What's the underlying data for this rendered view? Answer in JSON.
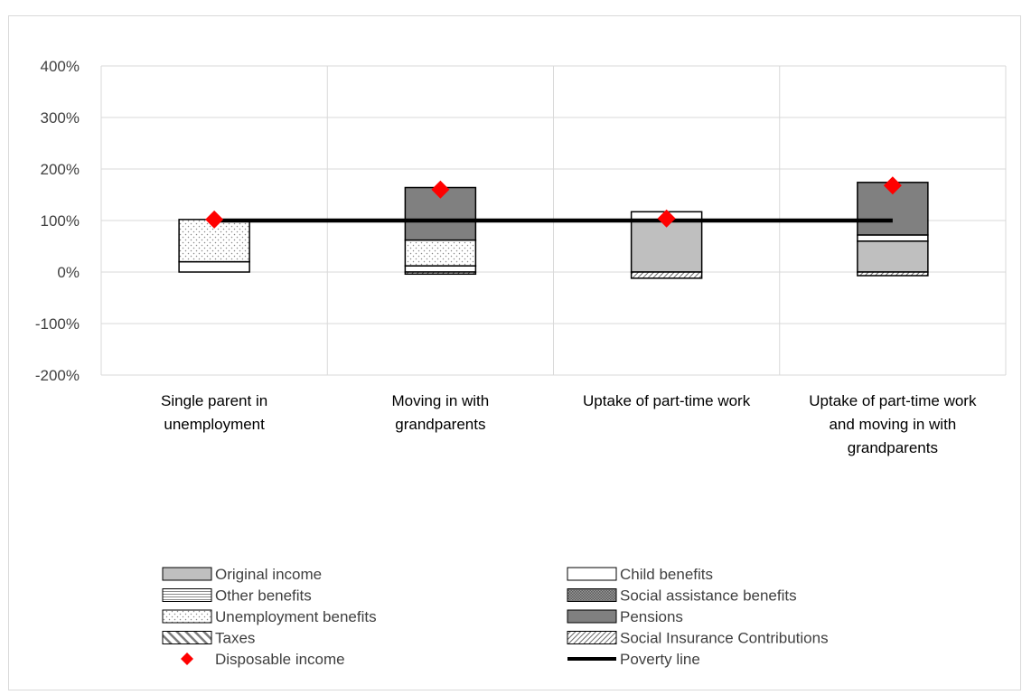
{
  "chart_data": {
    "type": "bar",
    "stacked": true,
    "title": "",
    "xlabel": "",
    "ylabel": "",
    "ylim": [
      -200,
      400
    ],
    "y_ticks": [
      400,
      300,
      200,
      100,
      0,
      -100,
      -200
    ],
    "y_tick_labels": [
      "400%",
      "300%",
      "200%",
      "100%",
      "0%",
      "-100%",
      "-200%"
    ],
    "grid": true,
    "legend_position": "bottom",
    "categories": [
      [
        "Single parent in",
        "unemployment"
      ],
      [
        "Moving in with",
        "grandparents"
      ],
      [
        "Uptake of part-time work"
      ],
      [
        "Uptake of part-time work",
        "and moving in with",
        "grandparents"
      ]
    ],
    "series": [
      {
        "name": "Original income",
        "pattern": "original",
        "values": [
          0,
          0,
          100,
          60
        ]
      },
      {
        "name": "Child benefits",
        "pattern": "child",
        "values": [
          20,
          12,
          17,
          12
        ]
      },
      {
        "name": "Other benefits",
        "pattern": "other",
        "values": [
          0,
          0,
          0,
          0
        ]
      },
      {
        "name": "Social assistance benefits",
        "pattern": "socassist",
        "values": [
          0,
          0,
          0,
          0
        ]
      },
      {
        "name": "Unemployment benefits",
        "pattern": "unemp",
        "values": [
          82,
          50,
          0,
          0
        ]
      },
      {
        "name": "Pensions",
        "pattern": "pensions",
        "values": [
          0,
          102,
          0,
          102
        ]
      },
      {
        "name": "Taxes",
        "pattern": "taxes",
        "values": [
          0,
          0,
          0,
          0
        ]
      },
      {
        "name": "Social Insurance Contributions",
        "pattern": "sic",
        "values": [
          0,
          -4,
          -12,
          -7
        ]
      }
    ],
    "disposable_income": {
      "name": "Disposable income",
      "values": [
        102,
        160,
        104,
        168
      ],
      "color": "#ff0000"
    },
    "poverty_line": {
      "name": "Poverty line",
      "value": 100,
      "color": "#000000"
    },
    "legend": {
      "left": [
        "Original income",
        "Other benefits",
        "Unemployment benefits",
        "Taxes",
        "Disposable income"
      ],
      "right": [
        "Child benefits",
        "Social assistance benefits",
        "Pensions",
        "Social Insurance Contributions",
        "Poverty line"
      ]
    }
  }
}
